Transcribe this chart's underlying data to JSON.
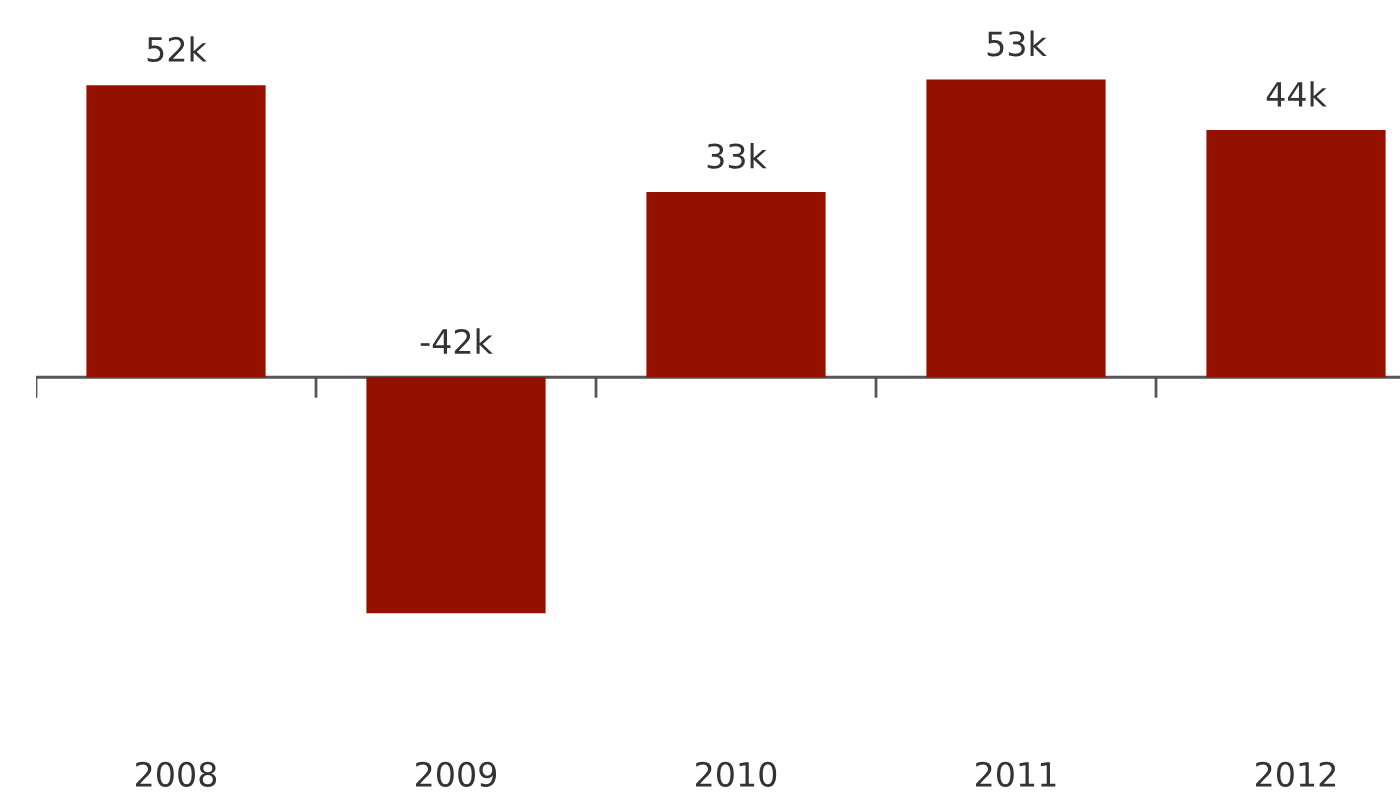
{
  "chart_data": {
    "type": "bar",
    "categories": [
      "2008",
      "2009",
      "2010",
      "2011",
      "2012"
    ],
    "values": [
      52,
      -42,
      33,
      53,
      44
    ],
    "value_labels": [
      "52k",
      "-42k",
      "33k",
      "53k",
      "44k"
    ],
    "color": "#941100",
    "grid": false,
    "legend": false
  }
}
